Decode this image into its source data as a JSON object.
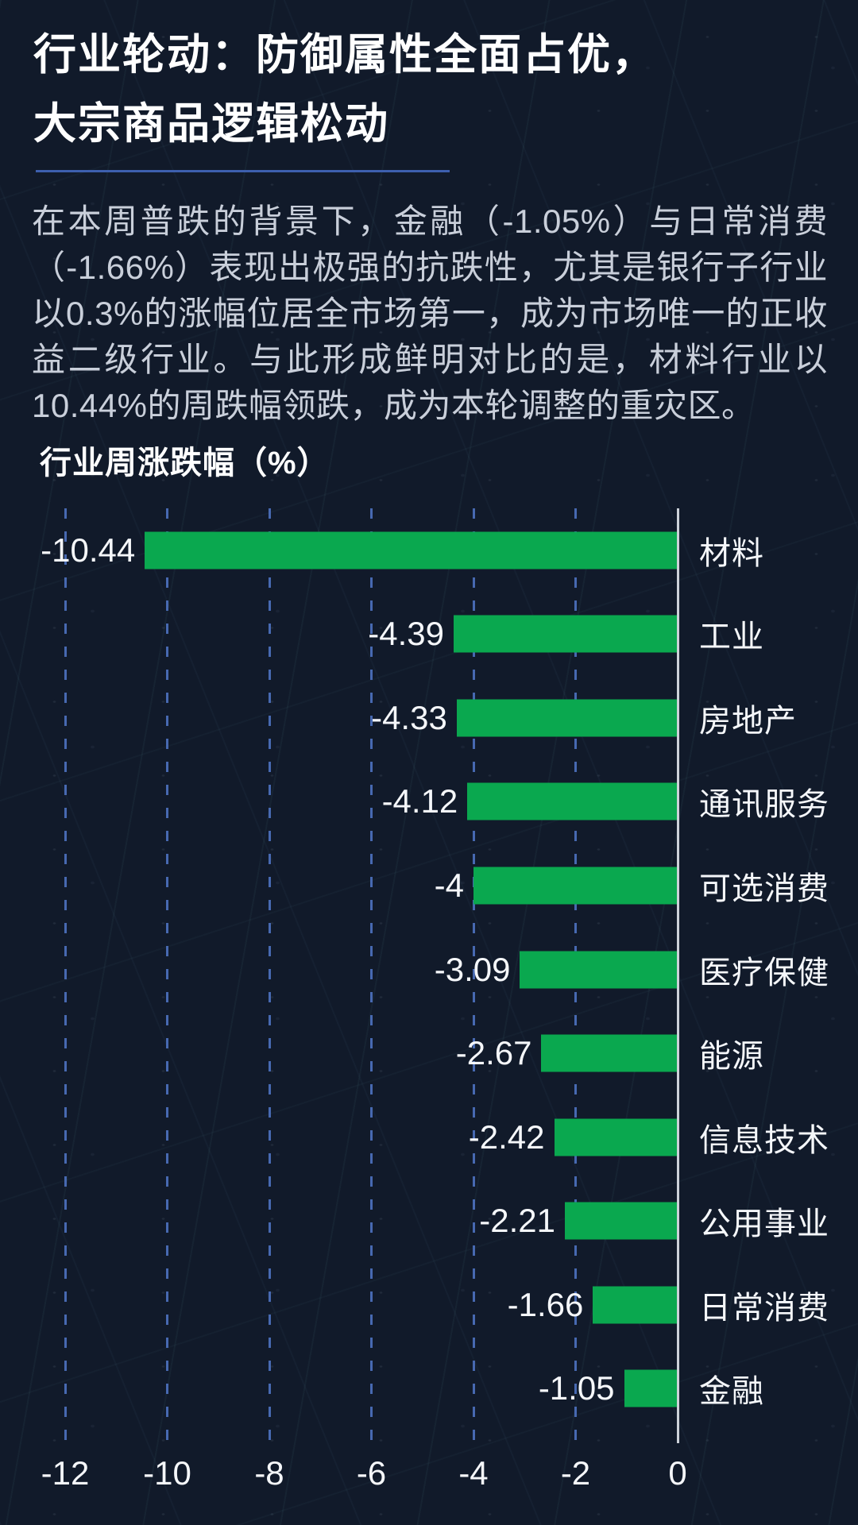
{
  "page": {
    "title_line1": "行业轮动：防御属性全面占优，",
    "title_line2": "大宗商品逻辑松动",
    "intro": "在本周普跌的背景下，金融（-1.05%）与日常消费（-1.66%）表现出极强的抗跌性，尤其是银行子行业以0.3%的涨幅位居全市场第一，成为市场唯一的正收益二级行业。与此形成鲜明对比的是，材料行业以10.44%的周跌幅领跌，成为本轮调整的重灾区。"
  },
  "chart_data": {
    "type": "bar",
    "orientation": "horizontal",
    "title": "行业周涨跌幅（%）",
    "categories": [
      "材料",
      "工业",
      "房地产",
      "通讯服务",
      "可选消费",
      "医疗保健",
      "能源",
      "信息技术",
      "公用事业",
      "日常消费",
      "金融"
    ],
    "values": [
      -10.44,
      -4.39,
      -4.33,
      -4.12,
      -4,
      -3.09,
      -2.67,
      -2.42,
      -2.21,
      -1.66,
      -1.05
    ],
    "value_labels": [
      "-10.44",
      "-4.39",
      "-4.33",
      "-4.12",
      "-4",
      "-3.09",
      "-2.67",
      "-2.42",
      "-2.21",
      "-1.66",
      "-1.05"
    ],
    "xlim": [
      -12,
      0
    ],
    "x_ticks": [
      -12,
      -10,
      -8,
      -6,
      -4,
      -2,
      0
    ],
    "grid": "dashed-vertical-gridlines",
    "legend": "none",
    "bar_color": "#0aa84f",
    "gridline_color": "#4a6db8",
    "axis_color": "#cdd2d9",
    "underline_color": "#3d5fae"
  }
}
